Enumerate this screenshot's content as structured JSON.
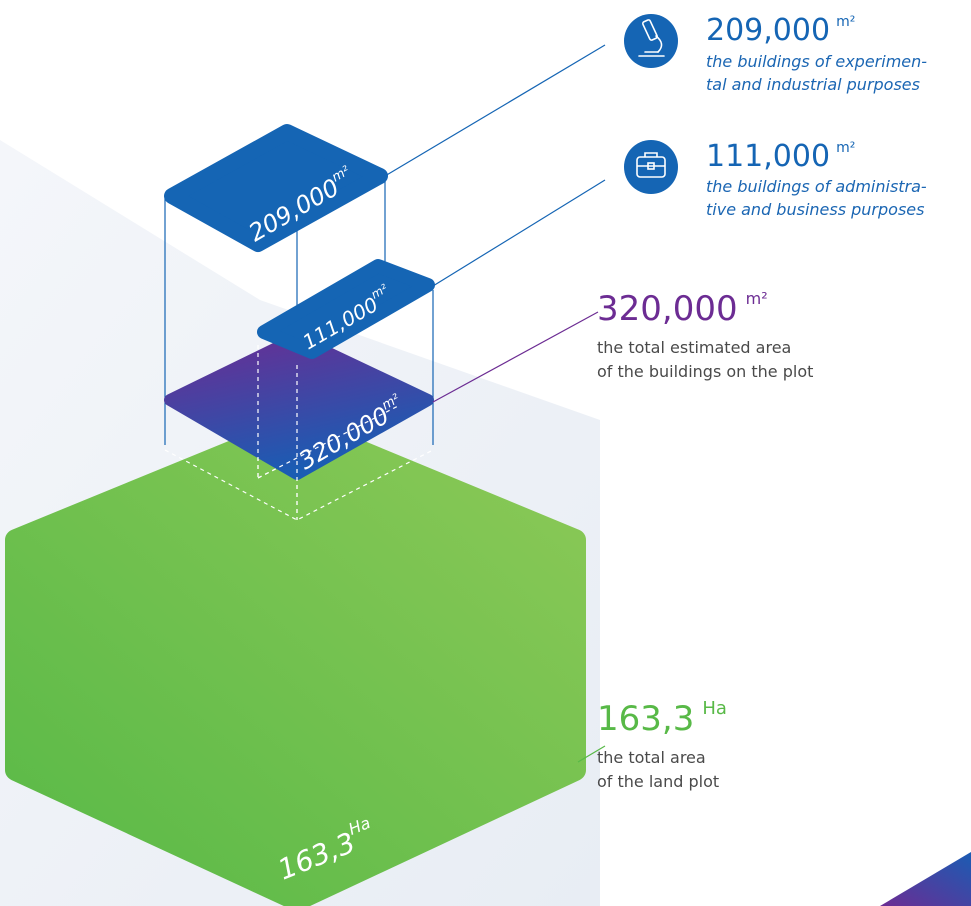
{
  "items": [
    {
      "value": "209,000",
      "unit": "m²",
      "description": [
        "the buildings of experimen-",
        "tal and industrial purposes"
      ]
    },
    {
      "value": "111,000",
      "unit": "m²",
      "description": [
        "the buildings of administra-",
        "tive and business purposes"
      ]
    },
    {
      "value": "320,000",
      "unit": "m²",
      "description": [
        "the total estimated area",
        "of the buildings on the plot"
      ]
    },
    {
      "value": "163,3",
      "unit": "Ha",
      "description": [
        "the total area",
        "of the land plot"
      ]
    }
  ]
}
